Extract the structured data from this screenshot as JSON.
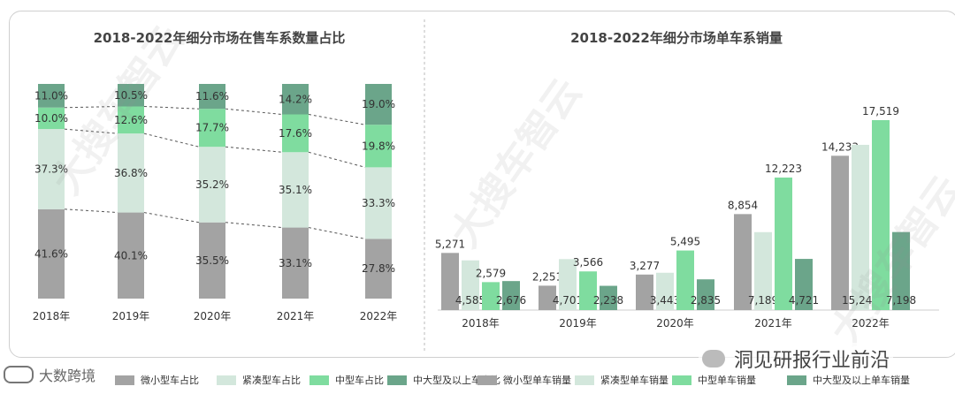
{
  "colors": {
    "mini_small": "#a3a3a3",
    "compact": "#d3e7dc",
    "medium": "#7fdc9f",
    "large": "#6ba58a",
    "dashed": "#555555"
  },
  "watermark": "大搜车智云",
  "left_chart_title": "2018-2022年细分市场在售车系数量占比",
  "right_chart_title": "2018-2022年细分市场单车系销量",
  "chart_data": [
    {
      "type": "bar",
      "stacked": true,
      "percent": true,
      "title": "2018-2022年细分市场在售车系数量占比",
      "categories": [
        "2018年",
        "2019年",
        "2020年",
        "2021年",
        "2022年"
      ],
      "series": [
        {
          "name": "微小型车占比",
          "color_key": "mini_small",
          "values": [
            41.6,
            40.1,
            35.5,
            33.1,
            27.8
          ],
          "labels": [
            "41.6%",
            "40.1%",
            "35.5%",
            "33.1%",
            "27.8%"
          ]
        },
        {
          "name": "紧凑型车占比",
          "color_key": "compact",
          "values": [
            37.3,
            36.8,
            35.2,
            35.1,
            33.3
          ],
          "labels": [
            "37.3%",
            "36.8%",
            "35.2%",
            "35.1%",
            "33.3%"
          ]
        },
        {
          "name": "中型车占比",
          "color_key": "medium",
          "values": [
            10.0,
            12.6,
            17.7,
            17.6,
            19.8
          ],
          "labels": [
            "10.0%",
            "12.6%",
            "17.7%",
            "17.6%",
            "19.8%"
          ]
        },
        {
          "name": "中大型及以上车占比",
          "color_key": "large",
          "values": [
            11.0,
            10.5,
            11.6,
            14.2,
            19.0
          ],
          "labels": [
            "11.0%",
            "10.5%",
            "11.6%",
            "14.2%",
            "19.0%"
          ]
        }
      ],
      "ylim": [
        0,
        100
      ]
    },
    {
      "type": "bar",
      "grouped": true,
      "title": "2018-2022年细分市场单车系销量",
      "categories": [
        "2018年",
        "2019年",
        "2020年",
        "2021年",
        "2022年"
      ],
      "series": [
        {
          "name": "微小型单车销量",
          "color_key": "mini_small",
          "values": [
            5271,
            2251,
            3277,
            8854,
            14233
          ],
          "labels": [
            "5,271",
            "2,251",
            "3,277",
            "8,854",
            "14,233"
          ],
          "label_position": "above"
        },
        {
          "name": "紧凑型单车销量",
          "color_key": "compact",
          "values": [
            4585,
            4701,
            3443,
            7189,
            15242
          ],
          "labels": [
            "4,585",
            "4,701",
            "3,443",
            "7,189",
            "15,242"
          ],
          "label_position": "inside"
        },
        {
          "name": "中型单车销量",
          "color_key": "medium",
          "values": [
            2579,
            3566,
            5495,
            12223,
            17519
          ],
          "labels": [
            "2,579",
            "3,566",
            "5,495",
            "12,223",
            "17,519"
          ],
          "label_position": "above"
        },
        {
          "name": "中大型及以上单车销量",
          "color_key": "large",
          "values": [
            2676,
            2238,
            2835,
            4721,
            7198
          ],
          "labels": [
            "2,676",
            "2,238",
            "2,835",
            "4,721",
            "7,198"
          ],
          "label_position": "inside"
        }
      ],
      "ylim": [
        0,
        18000
      ]
    }
  ],
  "legend": [
    {
      "label": "微小型车占比",
      "color_key": "mini_small"
    },
    {
      "label": "紧凑型车占比",
      "color_key": "compact"
    },
    {
      "label": "中型车占比",
      "color_key": "medium"
    },
    {
      "label": "中大型及以上车占比",
      "color_key": "large"
    },
    {
      "label": "微小型单车销量",
      "color_key": "mini_small"
    },
    {
      "label": "紧凑型单车销量",
      "color_key": "compact"
    },
    {
      "label": "中型单车销量",
      "color_key": "medium"
    },
    {
      "label": "中大型及以上单车销量",
      "color_key": "large"
    }
  ],
  "brand_left": "大数跨境",
  "brand_right": "洞见研报行业前沿"
}
